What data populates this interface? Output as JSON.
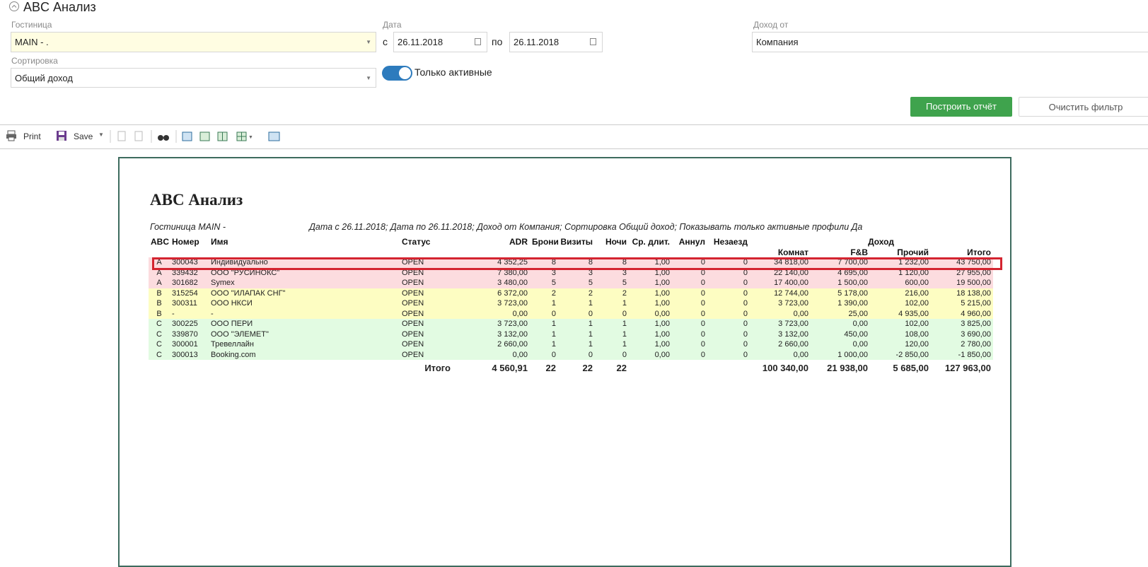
{
  "header": {
    "title": "ABC Анализ"
  },
  "filters": {
    "hotel": {
      "label": "Гостиница",
      "value": "MAIN - ."
    },
    "date": {
      "label": "Дата",
      "from_label": "с",
      "from": "26.11.2018",
      "to_label": "по",
      "to": "26.11.2018"
    },
    "income": {
      "label": "Доход от",
      "value": "Компания"
    },
    "sort": {
      "label": "Сортировка",
      "value": "Общий доход"
    },
    "active_only": {
      "label": "Только активные"
    },
    "build_button": "Построить отчёт",
    "clear_button": "Очистить фильтр"
  },
  "toolbar": {
    "print": "Print",
    "save": "Save"
  },
  "report": {
    "title": "ABC Анализ",
    "subtitle_hotel": "Гостиница MAIN -",
    "subtitle_rest": "Дата с 26.11.2018; Дата по 26.11.2018; Доход от Компания; Сортировка Общий доход; Показывать только активные профили Да",
    "column_group": "Доход",
    "columns": [
      "ABC",
      "Номер",
      "Имя",
      "Статус",
      "ADR",
      "Брони",
      "Визиты",
      "Ночи",
      "Ср. длит.",
      "Аннул",
      "Незаезд",
      "Комнат",
      "F&B",
      "Прочий",
      "Итого"
    ],
    "rows": [
      [
        "A",
        "300043",
        "Индивидуально",
        "OPEN",
        "4 352,25",
        "8",
        "8",
        "8",
        "1,00",
        "0",
        "0",
        "34 818,00",
        "7 700,00",
        "1 232,00",
        "43 750,00"
      ],
      [
        "A",
        "339432",
        "ООО \"РУСИНОКС\"",
        "OPEN",
        "7 380,00",
        "3",
        "3",
        "3",
        "1,00",
        "0",
        "0",
        "22 140,00",
        "4 695,00",
        "1 120,00",
        "27 955,00"
      ],
      [
        "A",
        "301682",
        "Symex",
        "OPEN",
        "3 480,00",
        "5",
        "5",
        "5",
        "1,00",
        "0",
        "0",
        "17 400,00",
        "1 500,00",
        "600,00",
        "19 500,00"
      ],
      [
        "B",
        "315254",
        "ООО \"ИЛАПАК СНГ\"",
        "OPEN",
        "6 372,00",
        "2",
        "2",
        "2",
        "1,00",
        "0",
        "0",
        "12 744,00",
        "5 178,00",
        "216,00",
        "18 138,00"
      ],
      [
        "B",
        "300311",
        "ООО НКСИ",
        "OPEN",
        "3 723,00",
        "1",
        "1",
        "1",
        "1,00",
        "0",
        "0",
        "3 723,00",
        "1 390,00",
        "102,00",
        "5 215,00"
      ],
      [
        "B",
        "-",
        "-",
        "OPEN",
        "0,00",
        "0",
        "0",
        "0",
        "0,00",
        "0",
        "0",
        "0,00",
        "25,00",
        "4 935,00",
        "4 960,00"
      ],
      [
        "C",
        "300225",
        "ООО ПЕРИ",
        "OPEN",
        "3 723,00",
        "1",
        "1",
        "1",
        "1,00",
        "0",
        "0",
        "3 723,00",
        "0,00",
        "102,00",
        "3 825,00"
      ],
      [
        "C",
        "339870",
        "ООО \"ЭЛЕМЕТ\"",
        "OPEN",
        "3 132,00",
        "1",
        "1",
        "1",
        "1,00",
        "0",
        "0",
        "3 132,00",
        "450,00",
        "108,00",
        "3 690,00"
      ],
      [
        "C",
        "300001",
        "Тревеллайн",
        "OPEN",
        "2 660,00",
        "1",
        "1",
        "1",
        "1,00",
        "0",
        "0",
        "2 660,00",
        "0,00",
        "120,00",
        "2 780,00"
      ],
      [
        "C",
        "300013",
        "Booking.com",
        "OPEN",
        "0,00",
        "0",
        "0",
        "0",
        "0,00",
        "0",
        "0",
        "0,00",
        "1 000,00",
        "-2 850,00",
        "-1 850,00"
      ]
    ],
    "totals": {
      "label": "Итого",
      "adr": "4 560,91",
      "bookings": "22",
      "visits": "22",
      "nights": "22",
      "rooms": "100 340,00",
      "fnb": "21 938,00",
      "other": "5 685,00",
      "total": "127 963,00"
    }
  }
}
